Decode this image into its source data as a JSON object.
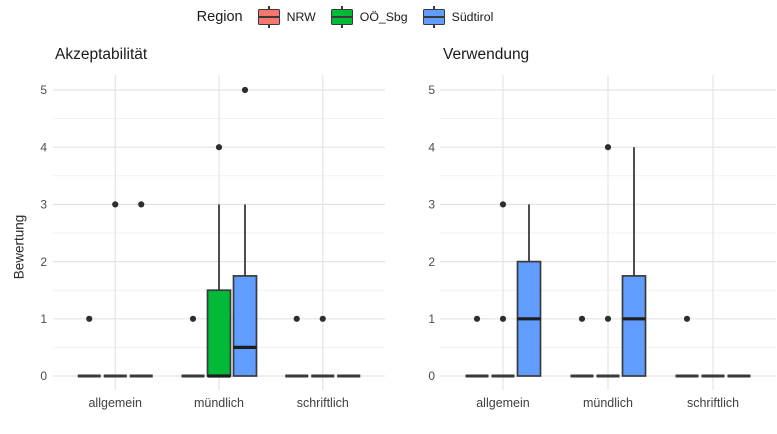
{
  "chart_data": {
    "type": "boxplot",
    "ylabel": "Bewertung",
    "ylim": [
      0,
      5
    ],
    "yticks": [
      0,
      1,
      2,
      3,
      4,
      5
    ],
    "grid": "major-and-minor, light gray on white, no panel border",
    "categories": [
      "allgemein",
      "mündlich",
      "schriftlich"
    ],
    "legend": {
      "title": "Region",
      "position": "top-center",
      "series": [
        {
          "name": "NRW",
          "color": "#F8766D"
        },
        {
          "name": "OÖ_Sbg",
          "color": "#00BA38"
        },
        {
          "name": "Südtirol",
          "color": "#619CFF"
        }
      ]
    },
    "style_colors": {
      "box_stroke": "#3A3A3A",
      "median_line": "#1E1E1E",
      "outlier_dot": "#2E2E2E",
      "grid_major": "#E4E4E4",
      "grid_minor": "#F1F1F1"
    },
    "panels": [
      {
        "title": "Akzeptabilität",
        "groups": [
          {
            "category": "allgemein",
            "boxes": [
              {
                "region": "NRW",
                "min": 0,
                "q1": 0,
                "median": 0,
                "q3": 0,
                "max": 0,
                "outliers": [
                  1
                ]
              },
              {
                "region": "OÖ_Sbg",
                "min": 0,
                "q1": 0,
                "median": 0,
                "q3": 0,
                "max": 0,
                "outliers": [
                  3
                ]
              },
              {
                "region": "Südtirol",
                "min": 0,
                "q1": 0,
                "median": 0,
                "q3": 0,
                "max": 0,
                "outliers": [
                  3
                ]
              }
            ]
          },
          {
            "category": "mündlich",
            "boxes": [
              {
                "region": "NRW",
                "min": 0,
                "q1": 0,
                "median": 0,
                "q3": 0,
                "max": 0,
                "outliers": [
                  1
                ]
              },
              {
                "region": "OÖ_Sbg",
                "min": 0,
                "q1": 0,
                "median": 0,
                "q3": 1.5,
                "max": 3,
                "outliers": [
                  4
                ]
              },
              {
                "region": "Südtirol",
                "min": 0,
                "q1": 0,
                "median": 0.5,
                "q3": 1.75,
                "max": 3,
                "outliers": [
                  5
                ]
              }
            ]
          },
          {
            "category": "schriftlich",
            "boxes": [
              {
                "region": "NRW",
                "min": 0,
                "q1": 0,
                "median": 0,
                "q3": 0,
                "max": 0,
                "outliers": [
                  1
                ]
              },
              {
                "region": "OÖ_Sbg",
                "min": 0,
                "q1": 0,
                "median": 0,
                "q3": 0,
                "max": 0,
                "outliers": [
                  1
                ]
              },
              {
                "region": "Südtirol",
                "min": 0,
                "q1": 0,
                "median": 0,
                "q3": 0,
                "max": 0,
                "outliers": []
              }
            ]
          }
        ]
      },
      {
        "title": "Verwendung",
        "groups": [
          {
            "category": "allgemein",
            "boxes": [
              {
                "region": "NRW",
                "min": 0,
                "q1": 0,
                "median": 0,
                "q3": 0,
                "max": 0,
                "outliers": [
                  1
                ]
              },
              {
                "region": "OÖ_Sbg",
                "min": 0,
                "q1": 0,
                "median": 0,
                "q3": 0,
                "max": 0,
                "outliers": [
                  1,
                  3
                ]
              },
              {
                "region": "Südtirol",
                "min": 0,
                "q1": 0,
                "median": 1,
                "q3": 2,
                "max": 3,
                "outliers": []
              }
            ]
          },
          {
            "category": "mündlich",
            "boxes": [
              {
                "region": "NRW",
                "min": 0,
                "q1": 0,
                "median": 0,
                "q3": 0,
                "max": 0,
                "outliers": [
                  1
                ]
              },
              {
                "region": "OÖ_Sbg",
                "min": 0,
                "q1": 0,
                "median": 0,
                "q3": 0,
                "max": 0,
                "outliers": [
                  1,
                  4
                ]
              },
              {
                "region": "Südtirol",
                "min": 0,
                "q1": 0,
                "median": 1,
                "q3": 1.75,
                "max": 4,
                "outliers": []
              }
            ]
          },
          {
            "category": "schriftlich",
            "boxes": [
              {
                "region": "NRW",
                "min": 0,
                "q1": 0,
                "median": 0,
                "q3": 0,
                "max": 0,
                "outliers": [
                  1
                ]
              },
              {
                "region": "OÖ_Sbg",
                "min": 0,
                "q1": 0,
                "median": 0,
                "q3": 0,
                "max": 0,
                "outliers": []
              },
              {
                "region": "Südtirol",
                "min": 0,
                "q1": 0,
                "median": 0,
                "q3": 0,
                "max": 0,
                "outliers": []
              }
            ]
          }
        ]
      }
    ]
  }
}
